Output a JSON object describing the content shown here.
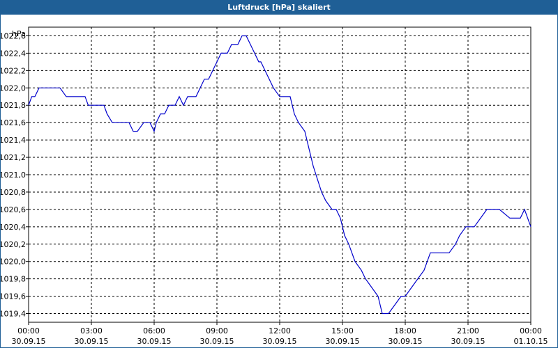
{
  "window": {
    "title": "Luftdruck [hPa] skaliert"
  },
  "chart_data": {
    "type": "line",
    "title": "Luftdruck [hPa] skaliert",
    "ylabel": "hPa",
    "xlabel": "",
    "ylim": [
      1019.3,
      1022.7
    ],
    "grid": true,
    "y_ticks": [
      "1022,6",
      "1022,4",
      "1022,2",
      "1022,0",
      "1021,8",
      "1021,6",
      "1021,4",
      "1021,2",
      "1021,0",
      "1020,8",
      "1020,6",
      "1020,4",
      "1020,2",
      "1020,0",
      "1019,8",
      "1019,6",
      "1019,4"
    ],
    "x_ticks": [
      {
        "time": "00:00",
        "date": "30.09.15"
      },
      {
        "time": "03:00",
        "date": "30.09.15"
      },
      {
        "time": "06:00",
        "date": "30.09.15"
      },
      {
        "time": "09:00",
        "date": "30.09.15"
      },
      {
        "time": "12:00",
        "date": "30.09.15"
      },
      {
        "time": "15:00",
        "date": "30.09.15"
      },
      {
        "time": "18:00",
        "date": "30.09.15"
      },
      {
        "time": "21:00",
        "date": "30.09.15"
      },
      {
        "time": "00:00",
        "date": "01.10.15"
      }
    ],
    "series": [
      {
        "color": "#0000cc",
        "x_hours": [
          0,
          0.15,
          0.3,
          0.5,
          0.7,
          1.0,
          1.5,
          1.8,
          2.0,
          2.3,
          2.7,
          2.85,
          3.0,
          3.3,
          3.6,
          3.75,
          4.0,
          4.3,
          4.8,
          5.0,
          5.2,
          5.5,
          5.6,
          5.8,
          6.0,
          6.1,
          6.3,
          6.5,
          6.7,
          7.0,
          7.2,
          7.4,
          7.6,
          7.8,
          8.0,
          8.2,
          8.4,
          8.6,
          8.8,
          9.0,
          9.2,
          9.5,
          9.7,
          10.0,
          10.2,
          10.4,
          10.6,
          10.8,
          11.0,
          11.1,
          11.3,
          11.5,
          11.7,
          12.0,
          12.5,
          12.7,
          12.9,
          13.2,
          13.4,
          13.6,
          14.0,
          14.2,
          14.5,
          14.7,
          14.9,
          15.1,
          15.3,
          15.6,
          15.9,
          16.1,
          16.4,
          16.7,
          16.9,
          17.2,
          17.5,
          17.8,
          18.0,
          18.3,
          18.6,
          18.9,
          19.2,
          20.1,
          20.4,
          20.6,
          20.9,
          21.3,
          21.6,
          21.9,
          22.2,
          22.5,
          23.0,
          23.3,
          23.5,
          23.7,
          24.0
        ],
        "values": [
          1021.8,
          1021.9,
          1021.9,
          1022.0,
          1022.0,
          1022.0,
          1022.0,
          1021.9,
          1021.9,
          1021.9,
          1021.9,
          1021.8,
          1021.8,
          1021.8,
          1021.8,
          1021.7,
          1021.6,
          1021.6,
          1021.6,
          1021.5,
          1021.5,
          1021.6,
          1021.6,
          1021.6,
          1021.5,
          1021.6,
          1021.7,
          1021.7,
          1021.8,
          1021.8,
          1021.9,
          1021.8,
          1021.9,
          1021.9,
          1021.9,
          1022.0,
          1022.1,
          1022.1,
          1022.2,
          1022.3,
          1022.4,
          1022.4,
          1022.5,
          1022.5,
          1022.6,
          1022.6,
          1022.5,
          1022.4,
          1022.3,
          1022.3,
          1022.2,
          1022.1,
          1022.0,
          1021.9,
          1021.9,
          1021.7,
          1021.6,
          1021.5,
          1021.3,
          1021.1,
          1020.8,
          1020.7,
          1020.6,
          1020.6,
          1020.5,
          1020.3,
          1020.2,
          1020.0,
          1019.9,
          1019.8,
          1019.7,
          1019.6,
          1019.4,
          1019.4,
          1019.5,
          1019.6,
          1019.6,
          1019.7,
          1019.8,
          1019.9,
          1020.1,
          1020.1,
          1020.2,
          1020.3,
          1020.4,
          1020.4,
          1020.5,
          1020.6,
          1020.6,
          1020.6,
          1020.5,
          1020.5,
          1020.5,
          1020.6,
          1020.4
        ]
      }
    ]
  }
}
